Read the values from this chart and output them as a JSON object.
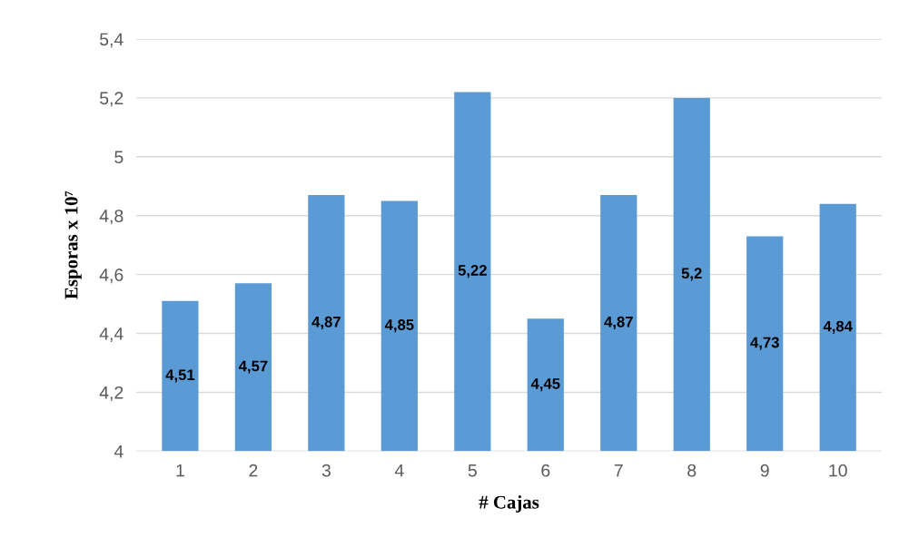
{
  "chart_data": {
    "type": "bar",
    "xlabel": "# Cajas",
    "ylabel": "Esporas x 10⁷",
    "categories": [
      "1",
      "2",
      "3",
      "4",
      "5",
      "6",
      "7",
      "8",
      "9",
      "10"
    ],
    "values": [
      4.51,
      4.57,
      4.87,
      4.85,
      5.22,
      4.45,
      4.87,
      5.2,
      4.73,
      4.84
    ],
    "value_labels": [
      "4,51",
      "4,57",
      "4,87",
      "4,85",
      "5,22",
      "4,45",
      "4,87",
      "5,2",
      "4,73",
      "4,84"
    ],
    "color": "#5b9bd5",
    "ylim": [
      4,
      5.4
    ],
    "yticks": [
      4,
      {
        "value": 4.2,
        "label": "4,2"
      },
      {
        "value": 4.4,
        "label": "4,4"
      },
      {
        "value": 4.6,
        "label": "4,6"
      },
      {
        "value": 4.8,
        "label": "4,8"
      },
      5,
      {
        "value": 5.2,
        "label": "5,2"
      },
      {
        "value": 5.4,
        "label": "5,4"
      }
    ],
    "grid": "y"
  }
}
